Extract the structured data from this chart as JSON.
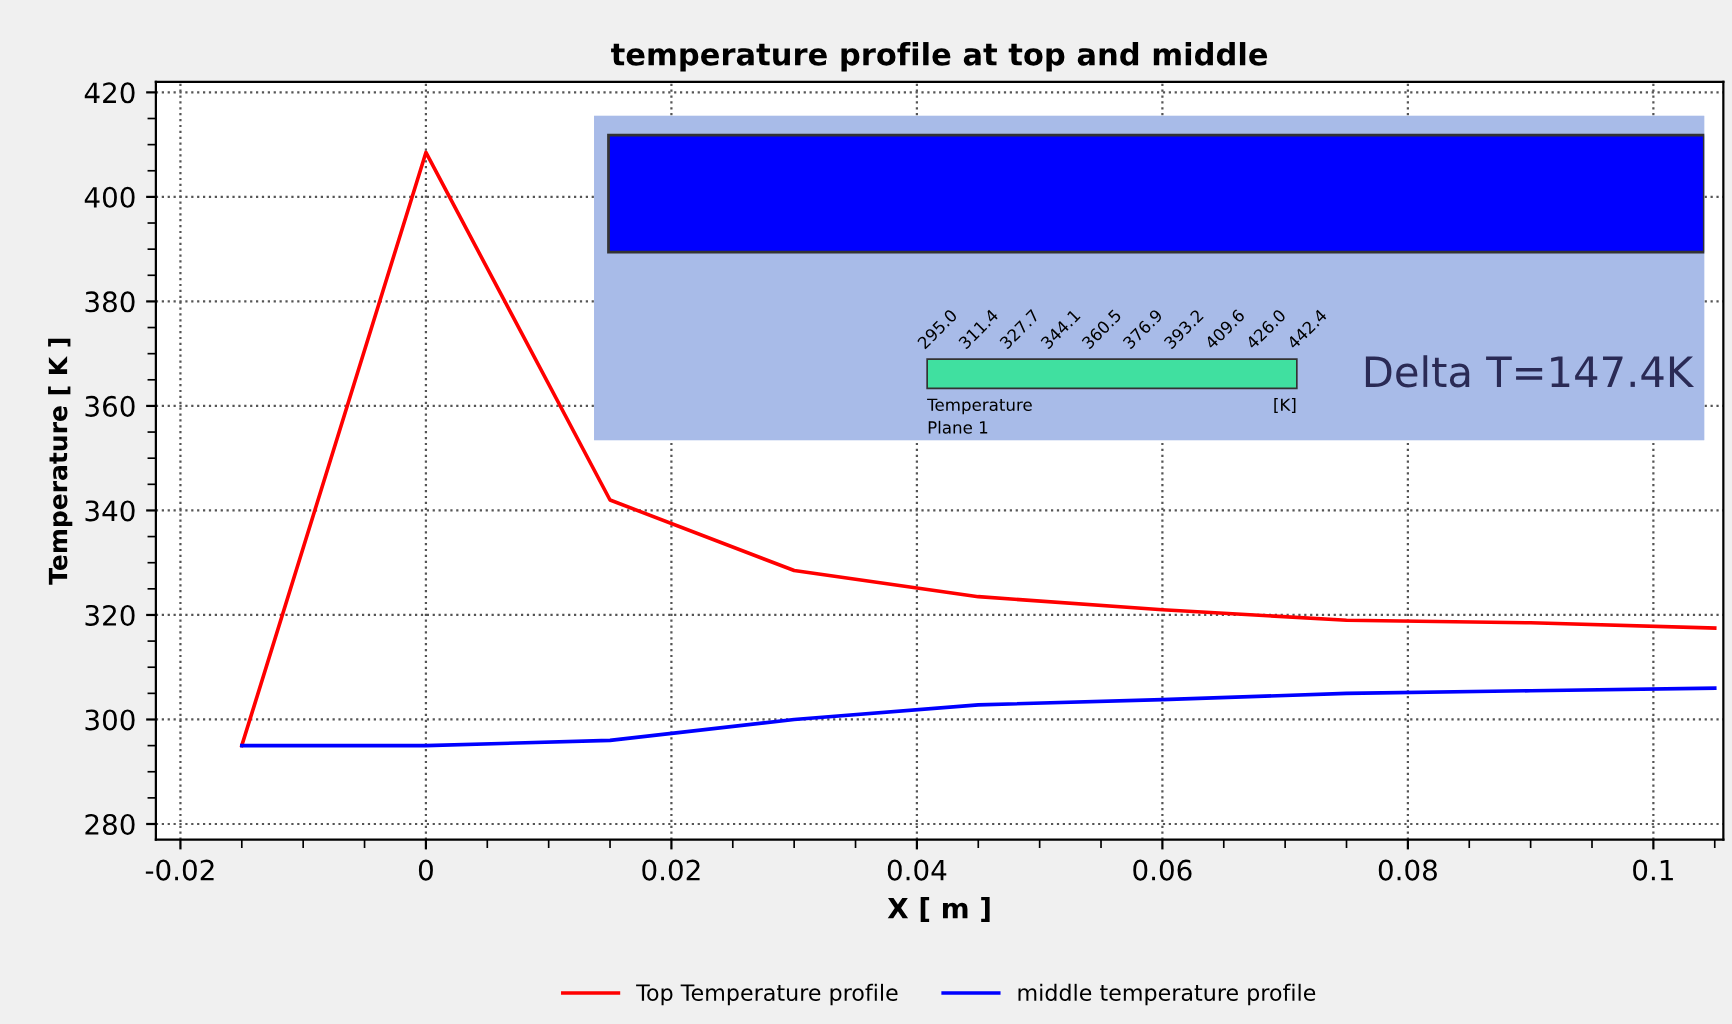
{
  "chart_data": {
    "type": "line",
    "title": "temperature profile at top and middle",
    "xlabel": "X [ m ]",
    "ylabel": "Temperature [ K ]",
    "xlim": [
      -0.022,
      0.1057
    ],
    "xticks": [
      -0.02,
      0,
      0.02,
      0.04,
      0.06,
      0.08,
      0.1
    ],
    "ylim": [
      277,
      422
    ],
    "yticks": [
      280,
      300,
      320,
      340,
      360,
      380,
      400,
      420
    ],
    "grid": true,
    "legend": "bottom",
    "line_style": "solid",
    "marker": "none",
    "series": [
      {
        "name": "Top Temperature profile",
        "color": "#ff0000",
        "x": [
          -0.015,
          0,
          0.015,
          0.03,
          0.045,
          0.06,
          0.075,
          0.09,
          0.105
        ],
        "values": [
          295,
          408.5,
          342,
          328.5,
          323.5,
          321,
          319,
          318.5,
          317.5
        ]
      },
      {
        "name": "middle temperature profile",
        "color": "#0000ff",
        "x": [
          -0.015,
          0,
          0.015,
          0.03,
          0.045,
          0.06,
          0.075,
          0.09,
          0.105
        ],
        "values": [
          295,
          295,
          296,
          300,
          302.8,
          303.8,
          305,
          305.5,
          306
        ]
      }
    ],
    "annotations": [
      "295.0",
      "311.4",
      "327.7",
      "344.1",
      "360.5",
      "376.9",
      "393.2",
      "409.6",
      "426.0",
      "442.4",
      "Temperature",
      "Plane 1",
      "[K]",
      "Delta T=147.4K"
    ]
  }
}
